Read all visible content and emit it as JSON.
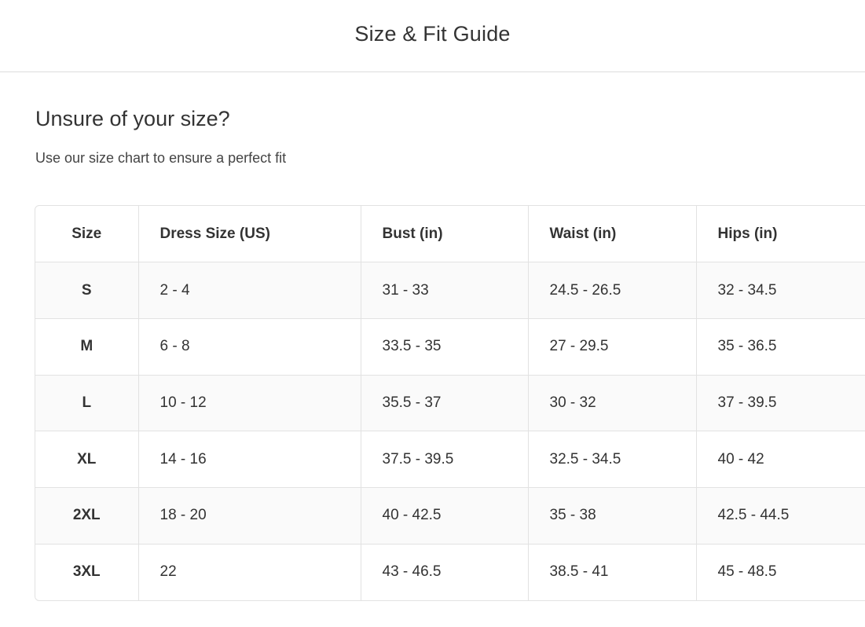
{
  "header": {
    "title": "Size & Fit Guide"
  },
  "intro": {
    "heading": "Unsure of your size?",
    "subtitle": "Use our size chart to ensure a perfect fit"
  },
  "table": {
    "columns": [
      "Size",
      "Dress Size (US)",
      "Bust (in)",
      "Waist (in)",
      "Hips (in)"
    ],
    "rows": [
      [
        "S",
        "2 - 4",
        "31 - 33",
        "24.5 - 26.5",
        "32 - 34.5"
      ],
      [
        "M",
        "6 - 8",
        "33.5 - 35",
        "27 - 29.5",
        "35 - 36.5"
      ],
      [
        "L",
        "10 - 12",
        "35.5 - 37",
        "30 - 32",
        "37 - 39.5"
      ],
      [
        "XL",
        "14 - 16",
        "37.5 - 39.5",
        "32.5 - 34.5",
        "40 - 42"
      ],
      [
        "2XL",
        "18 - 20",
        "40 - 42.5",
        "35 - 38",
        "42.5 - 44.5"
      ],
      [
        "3XL",
        "22",
        "43 - 46.5",
        "38.5 - 41",
        "45 - 48.5"
      ]
    ]
  }
}
